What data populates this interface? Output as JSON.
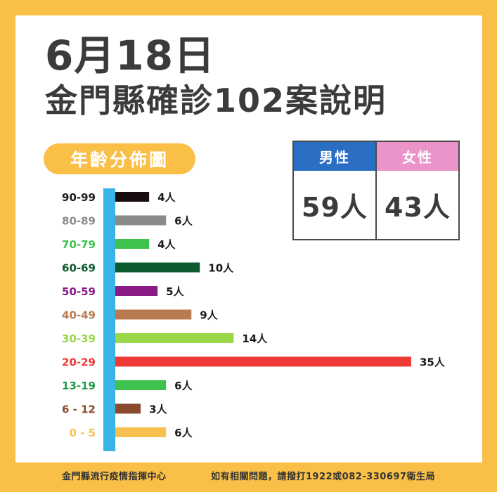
{
  "title": {
    "line1": "6月18日",
    "line2": "金門縣確診102案說明"
  },
  "section_label": "年齡分佈圖",
  "gender": {
    "male": {
      "label": "男性",
      "value": "59人",
      "color": "#2b6fc4"
    },
    "female": {
      "label": "女性",
      "value": "43人",
      "color": "#ea94c9"
    }
  },
  "chart_data": {
    "type": "bar",
    "orientation": "horizontal",
    "title": "年齡分佈圖",
    "unit": "人",
    "categories": [
      "90-99",
      "80-89",
      "70-79",
      "60-69",
      "50-59",
      "40-49",
      "30-39",
      "20-29",
      "13-19",
      "6 - 12",
      "0 - 5"
    ],
    "values": [
      4,
      6,
      4,
      10,
      5,
      9,
      14,
      35,
      6,
      3,
      6
    ],
    "colors": [
      "#1a0d12",
      "#8a8a8a",
      "#3dc24e",
      "#0d5a2e",
      "#8a1a86",
      "#b87a4e",
      "#9ad84a",
      "#ee3a36",
      "#3dc24e",
      "#8a4a2e",
      "#f9c14f"
    ],
    "label_colors": [
      "#1a1a1a",
      "#8a8a8a",
      "#3dc24e",
      "#0d5a2e",
      "#8a1a86",
      "#b87a4e",
      "#9ad84a",
      "#ee3a36",
      "#1f9a4a",
      "#8a4a2e",
      "#f9c14f"
    ],
    "axis_color": "#38b4e6",
    "xlim": [
      0,
      35
    ],
    "grid": false
  },
  "footer": {
    "left": "金門縣流行疫情指揮中心",
    "right": "如有相關問題，請撥打1922或082-330697衛生局"
  }
}
